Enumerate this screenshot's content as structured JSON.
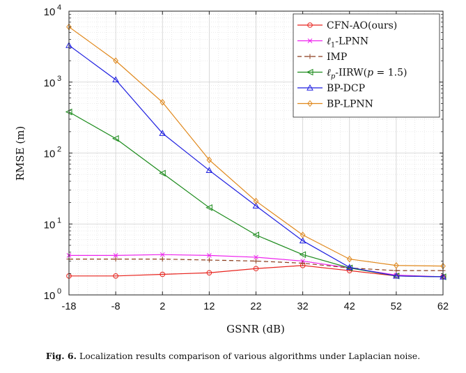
{
  "chart_data": {
    "type": "line",
    "title": "",
    "xlabel": "GSNR (dB)",
    "ylabel": "RMSE (m)",
    "yscale": "log",
    "ylim": [
      1,
      10000
    ],
    "xlim": [
      -18,
      62
    ],
    "x": [
      -18,
      -8,
      2,
      12,
      22,
      32,
      42,
      52,
      62
    ],
    "xtick_labels": [
      "-18",
      "-8",
      "2",
      "12",
      "22",
      "32",
      "42",
      "52",
      "62"
    ],
    "ytick_labels": [
      {
        "value": 1,
        "base": "10",
        "exp": "0"
      },
      {
        "value": 10,
        "base": "10",
        "exp": "1"
      },
      {
        "value": 100,
        "base": "10",
        "exp": "2"
      },
      {
        "value": 1000,
        "base": "10",
        "exp": "3"
      },
      {
        "value": 10000,
        "base": "10",
        "exp": "4"
      }
    ],
    "grid": true,
    "minor_grid": true,
    "legend_position": "top-right",
    "series": [
      {
        "name": "CFN-AO(ours)",
        "color": "#e8231d",
        "marker": "circle",
        "dash": "solid",
        "values": [
          1.85,
          1.85,
          1.95,
          2.05,
          2.35,
          2.6,
          2.2,
          1.85,
          1.8
        ]
      },
      {
        "name": "ℓ1-LPNN",
        "color": "#ee22ee",
        "marker": "x",
        "dash": "solid",
        "values": [
          3.6,
          3.6,
          3.7,
          3.6,
          3.4,
          3.0,
          2.4,
          1.9,
          1.8
        ]
      },
      {
        "name": "IMP",
        "color": "#8b3a1a",
        "marker": "plus",
        "dash": "dashed",
        "values": [
          3.2,
          3.2,
          3.2,
          3.1,
          3.0,
          2.8,
          2.4,
          2.2,
          2.2
        ]
      },
      {
        "name": "ℓp-IIRW(p = 1.5)",
        "color": "#1a8a1a",
        "marker": "triangle-left",
        "dash": "solid",
        "values": [
          380,
          160,
          52,
          17,
          7,
          3.7,
          2.4,
          1.85,
          1.8
        ]
      },
      {
        "name": "BP-DCP",
        "color": "#1f1fe0",
        "marker": "triangle-up",
        "dash": "solid",
        "values": [
          3300,
          1080,
          190,
          57,
          18,
          5.8,
          2.45,
          1.85,
          1.8
        ]
      },
      {
        "name": "BP-LPNN",
        "color": "#e0871a",
        "marker": "diamond",
        "dash": "solid",
        "values": [
          6000,
          2000,
          520,
          80,
          21,
          7,
          3.2,
          2.6,
          2.55
        ]
      }
    ],
    "legend_labels": [
      {
        "text": "CFN-AO(ours)"
      },
      {
        "main": "ℓ",
        "sub": "1",
        "rest": "-LPNN"
      },
      {
        "text": "IMP"
      },
      {
        "main": "ℓ",
        "sub": "p",
        "rest": "-IIRW(",
        "italic": "p",
        "tail": " = 1.5)"
      },
      {
        "text": "BP-DCP"
      },
      {
        "text": "BP-LPNN"
      }
    ]
  },
  "caption": {
    "label": "Fig. 6.",
    "text": "Localization results comparison of various algorithms under Laplacian noise."
  }
}
